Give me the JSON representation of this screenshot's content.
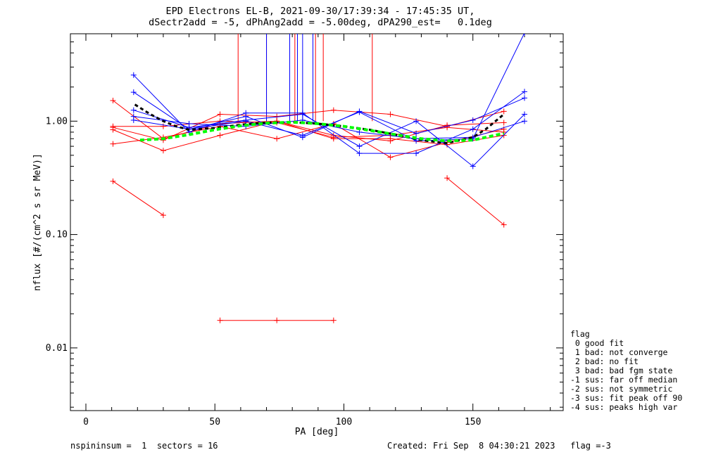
{
  "title_line1": "EPD Electrons EL-B, 2021-09-30/17:39:34 - 17:45:35 UT,",
  "title_line2": "dSectr2add = -5, dPhAng2add = -5.00deg, dPA290_est=   0.1deg",
  "footer_left": "nspininsum =  1  sectors = 16",
  "footer_right": "Created: Fri Sep  8 04:30:21 2023   flag =-3",
  "legend": {
    "title": "flag",
    "entries": [
      " 0 good fit",
      " 1 bad: not converge",
      " 2 bad: no fit",
      " 3 bad: bad fgm state",
      "-1 sus: far off median",
      "-2 sus: not symmetric",
      "-3 sus: fit peak off 90",
      "-4 sus: peaks high var"
    ]
  },
  "colors": {
    "red": "#ff0000",
    "blue": "#0000ff",
    "black_fit": "#000000",
    "green_fit": "#00ff00",
    "axis": "#000000"
  },
  "chart_data": {
    "type": "line",
    "xlabel": "PA [deg]",
    "ylabel": "nflux [#/(cm^2 s sr MeV)]",
    "xlim": [
      -6,
      185
    ],
    "ylim": [
      0.0028,
      5.9
    ],
    "yscale": "log",
    "xticks": [
      0,
      50,
      100,
      150
    ],
    "xtick_labels": [
      "0",
      "50",
      "100",
      "150"
    ],
    "yticks": [
      0.01,
      0.1,
      1.0
    ],
    "ytick_labels": [
      "0.01",
      "0.10",
      "1.00"
    ],
    "series": [
      {
        "color": "red",
        "x": [
          10.5,
          30,
          52,
          74,
          96,
          118,
          140,
          162
        ],
        "y": [
          0.88,
          0.68,
          1.15,
          1.1,
          1.25,
          1.15,
          0.9,
          1.22
        ]
      },
      {
        "color": "red",
        "x": [
          10.5,
          30,
          52,
          74,
          96,
          118,
          140,
          162
        ],
        "y": [
          0.84,
          0.55,
          0.75,
          1.0,
          0.7,
          0.7,
          0.62,
          0.75
        ]
      },
      {
        "color": "red",
        "x": [
          10.5,
          30,
          52,
          74,
          96,
          118,
          140,
          162
        ],
        "y": [
          0.63,
          0.72,
          0.9,
          0.7,
          0.95,
          0.48,
          0.65,
          0.85
        ]
      },
      {
        "color": "red",
        "x": [
          10.5,
          30,
          52,
          74,
          96,
          118,
          140,
          162
        ],
        "y": [
          1.52,
          0.7,
          0.95,
          1.0,
          0.75,
          0.67,
          0.92,
          0.97
        ]
      },
      {
        "color": "red",
        "x": [
          10.5,
          30,
          52,
          74,
          96,
          118,
          140,
          162
        ],
        "y": [
          0.9,
          0.9,
          1.0,
          0.97,
          0.72,
          0.75,
          0.88,
          0.8
        ]
      },
      {
        "color": "red",
        "x": [
          10.5,
          30
        ],
        "y": [
          0.295,
          0.148
        ]
      },
      {
        "color": "red",
        "x": [
          140,
          162
        ],
        "y": [
          0.315,
          0.122
        ]
      },
      {
        "color": "red",
        "x": [
          52,
          74,
          96
        ],
        "y": [
          0.0175,
          0.0175,
          0.0175
        ]
      },
      {
        "color": "blue",
        "x": [
          18.5,
          40,
          62,
          84,
          106,
          128,
          150,
          170
        ],
        "y": [
          2.55,
          0.8,
          1.18,
          1.18,
          0.52,
          0.52,
          0.85,
          1.82
        ]
      },
      {
        "color": "blue",
        "x": [
          18.5,
          40,
          62,
          84,
          106,
          128,
          150,
          170
        ],
        "y": [
          1.8,
          0.85,
          1.1,
          0.72,
          1.22,
          0.78,
          1.02,
          1.6
        ]
      },
      {
        "color": "blue",
        "x": [
          18.5,
          40,
          62,
          84,
          106,
          128,
          150,
          170
        ],
        "y": [
          1.25,
          0.88,
          1.02,
          1.15,
          0.6,
          1.0,
          0.4,
          1.15
        ]
      },
      {
        "color": "blue",
        "x": [
          18.5,
          40,
          62,
          84,
          106,
          128,
          150,
          170
        ],
        "y": [
          1.1,
          0.95,
          0.9,
          1.02,
          0.8,
          0.7,
          0.72,
          1.0
        ]
      },
      {
        "color": "blue",
        "x": [
          18.5,
          40,
          62,
          84,
          106,
          128,
          150,
          170
        ],
        "y": [
          1.02,
          0.85,
          1.0,
          0.75,
          1.2,
          0.67,
          0.7,
          6.0
        ]
      }
    ],
    "spikes": [
      {
        "color": "red",
        "x": 59
      },
      {
        "color": "red",
        "x": 70
      },
      {
        "color": "red",
        "x": 81
      },
      {
        "color": "red",
        "x": 89
      },
      {
        "color": "red",
        "x": 92
      },
      {
        "color": "red",
        "x": 111
      },
      {
        "color": "blue",
        "x": 70
      },
      {
        "color": "blue",
        "x": 79
      },
      {
        "color": "blue",
        "x": 82
      },
      {
        "color": "blue",
        "x": 84
      },
      {
        "color": "blue",
        "x": 88
      }
    ],
    "fits": [
      {
        "color": "black_fit",
        "style": "dashed",
        "x": [
          19,
          25,
          30,
          35,
          40,
          50,
          60,
          70,
          80,
          90,
          100,
          110,
          120,
          130,
          140,
          150,
          155,
          162
        ],
        "y": [
          1.4,
          1.15,
          1.0,
          0.9,
          0.84,
          0.87,
          0.93,
          0.97,
          0.98,
          0.95,
          0.9,
          0.84,
          0.76,
          0.68,
          0.64,
          0.72,
          0.85,
          1.15
        ]
      },
      {
        "color": "green_fit",
        "style": "dashed",
        "x": [
          21,
          30,
          40,
          50,
          60,
          70,
          80,
          90,
          100,
          110,
          120,
          130,
          140,
          150,
          162
        ],
        "y": [
          0.68,
          0.7,
          0.76,
          0.84,
          0.91,
          0.96,
          0.98,
          0.95,
          0.9,
          0.83,
          0.76,
          0.7,
          0.67,
          0.68,
          0.78
        ]
      }
    ]
  }
}
